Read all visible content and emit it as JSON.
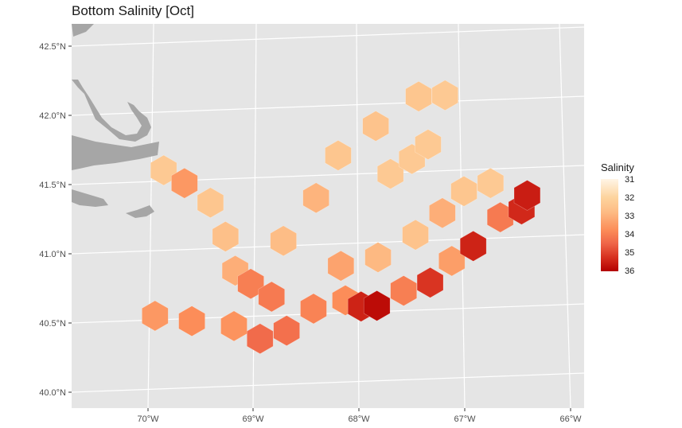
{
  "title": "Bottom Salinity [Oct]",
  "x_axis": {
    "ticks": [
      "70°W",
      "69°W",
      "68°W",
      "67°W",
      "66°W"
    ]
  },
  "y_axis": {
    "ticks": [
      "42.5°N",
      "42.0°N",
      "41.5°N",
      "41.0°N",
      "40.5°N",
      "40.0°N"
    ]
  },
  "legend": {
    "title": "Salinity",
    "ticks": [
      "31",
      "32",
      "33",
      "34",
      "35",
      "36"
    ],
    "colors": [
      "#fff5e6",
      "#fdd49e",
      "#fdbb84",
      "#fc8d59",
      "#ef6548",
      "#d7301f",
      "#b30000"
    ]
  },
  "colors": {
    "panel": "#e5e5e5",
    "grid": "#ffffff",
    "land": "#a6a6a6"
  },
  "chart_data": {
    "type": "heatmap",
    "title": "Bottom Salinity [Oct]",
    "legend_title": "Salinity",
    "color_scale": {
      "min": 31,
      "max": 36,
      "ticks": [
        31,
        32,
        33,
        34,
        35,
        36
      ]
    },
    "xlim": [
      -70.7,
      -65.9
    ],
    "ylim": [
      39.9,
      42.65
    ],
    "grid": true,
    "legend_position": "right",
    "x_ticks": [
      "70°W",
      "69°W",
      "68°W",
      "67°W",
      "66°W"
    ],
    "y_ticks": [
      "42.5°N",
      "42.0°N",
      "41.5°N",
      "41.0°N",
      "40.5°N",
      "40.0°N"
    ],
    "cells": [
      {
        "lon": -69.9,
        "lat": 41.6,
        "value": 32.2
      },
      {
        "lon": -69.7,
        "lat": 41.5,
        "value": 33.3
      },
      {
        "lon": -69.45,
        "lat": 41.35,
        "value": 32.3
      },
      {
        "lon": -69.3,
        "lat": 41.1,
        "value": 32.5
      },
      {
        "lon": -69.2,
        "lat": 40.85,
        "value": 32.9
      },
      {
        "lon": -69.05,
        "lat": 40.75,
        "value": 33.8
      },
      {
        "lon": -68.85,
        "lat": 40.65,
        "value": 33.9
      },
      {
        "lon": -68.75,
        "lat": 41.05,
        "value": 32.6
      },
      {
        "lon": -68.45,
        "lat": 41.35,
        "value": 32.8
      },
      {
        "lon": -68.25,
        "lat": 41.65,
        "value": 32.3
      },
      {
        "lon": -67.9,
        "lat": 41.85,
        "value": 32.4
      },
      {
        "lon": -67.5,
        "lat": 42.05,
        "value": 32.3
      },
      {
        "lon": -67.25,
        "lat": 42.05,
        "value": 32.2
      },
      {
        "lon": -67.75,
        "lat": 41.5,
        "value": 32.2
      },
      {
        "lon": -67.55,
        "lat": 41.6,
        "value": 32.2
      },
      {
        "lon": -67.4,
        "lat": 41.7,
        "value": 32.2
      },
      {
        "lon": -69.95,
        "lat": 40.55,
        "value": 33.3
      },
      {
        "lon": -69.6,
        "lat": 40.5,
        "value": 33.5
      },
      {
        "lon": -69.2,
        "lat": 40.45,
        "value": 33.4
      },
      {
        "lon": -68.95,
        "lat": 40.35,
        "value": 34.2
      },
      {
        "lon": -68.7,
        "lat": 40.4,
        "value": 34.1
      },
      {
        "lon": -68.45,
        "lat": 40.55,
        "value": 33.7
      },
      {
        "lon": -68.15,
        "lat": 40.6,
        "value": 33.5
      },
      {
        "lon": -68.0,
        "lat": 40.55,
        "value": 35.4
      },
      {
        "lon": -67.85,
        "lat": 40.55,
        "value": 35.8
      },
      {
        "lon": -67.6,
        "lat": 40.65,
        "value": 33.8
      },
      {
        "lon": -67.35,
        "lat": 40.7,
        "value": 35.1
      },
      {
        "lon": -67.15,
        "lat": 40.85,
        "value": 33.2
      },
      {
        "lon": -66.95,
        "lat": 40.95,
        "value": 35.4
      },
      {
        "lon": -66.7,
        "lat": 41.15,
        "value": 33.9
      },
      {
        "lon": -66.5,
        "lat": 41.2,
        "value": 35.3
      },
      {
        "lon": -66.45,
        "lat": 41.3,
        "value": 35.5
      },
      {
        "lon": -67.5,
        "lat": 41.05,
        "value": 32.4
      },
      {
        "lon": -67.85,
        "lat": 40.9,
        "value": 32.7
      },
      {
        "lon": -67.05,
        "lat": 41.35,
        "value": 32.3
      },
      {
        "lon": -66.8,
        "lat": 41.4,
        "value": 32.2
      },
      {
        "lon": -67.25,
        "lat": 41.2,
        "value": 32.9
      },
      {
        "lon": -68.2,
        "lat": 40.85,
        "value": 33.1
      }
    ]
  }
}
